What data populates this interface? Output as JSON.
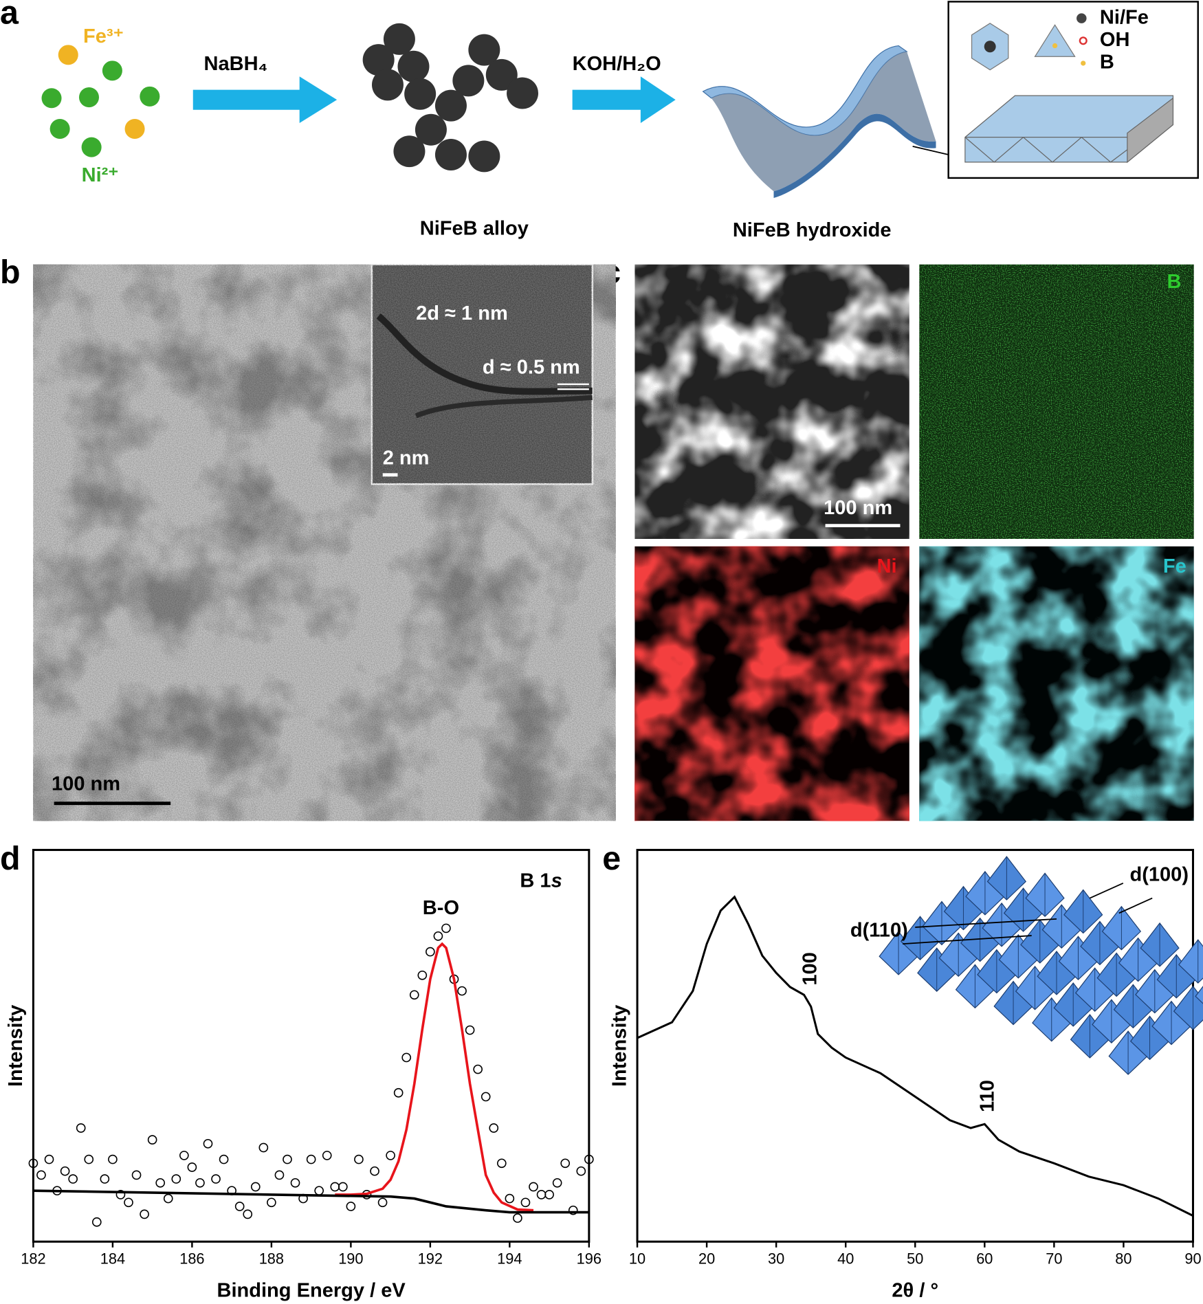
{
  "panel_labels": [
    "a",
    "b",
    "c",
    "d",
    "e"
  ],
  "panel_a": {
    "ion_fe": "Fe³⁺",
    "ion_ni": "Ni²⁺",
    "reagent_1": "NaBH₄",
    "reagent_2": "KOH/H₂O",
    "product_1": "NiFeB alloy",
    "product_2": "NiFeB hydroxide",
    "legend": [
      "Ni/Fe",
      "OH",
      "B"
    ]
  },
  "panel_b": {
    "inset_label_1": "2d ≈ 1 nm",
    "inset_label_2": "d ≈ 0.5 nm",
    "inset_scale": "2 nm",
    "scale": "100 nm"
  },
  "panel_c": {
    "scale": "100 nm",
    "maps": [
      "B",
      "Ni",
      "Fe"
    ]
  },
  "chart_data": [
    {
      "type": "scatter",
      "title": "B 1",
      "title_italic": "s",
      "annotation": "B-O",
      "x_label": "Binding Energy / eV",
      "y_label": "Intensity",
      "xlim": [
        182,
        196
      ],
      "xticks": [
        182,
        184,
        186,
        188,
        190,
        192,
        194,
        196
      ],
      "ylim": [
        0,
        100
      ],
      "series": [
        {
          "type": "scatter",
          "color": "#000000",
          "x": [
            182,
            182.2,
            182.4,
            182.6,
            182.8,
            183,
            183.2,
            183.4,
            183.6,
            183.8,
            184,
            184.2,
            184.4,
            184.6,
            184.8,
            185,
            185.2,
            185.4,
            185.6,
            185.8,
            186,
            186.2,
            186.4,
            186.6,
            186.8,
            187,
            187.2,
            187.4,
            187.6,
            187.8,
            188,
            188.2,
            188.4,
            188.6,
            188.8,
            189,
            189.2,
            189.4,
            189.6,
            189.8,
            190,
            190.2,
            190.4,
            190.6,
            190.8,
            191,
            191.2,
            191.4,
            191.6,
            191.8,
            192,
            192.2,
            192.4,
            192.6,
            192.8,
            193,
            193.2,
            193.4,
            193.6,
            193.8,
            194,
            194.2,
            194.4,
            194.6,
            194.8,
            195,
            195.2,
            195.4,
            195.6,
            195.8,
            196
          ],
          "values": [
            20,
            17,
            21,
            13,
            18,
            16,
            29,
            21,
            5,
            16,
            21,
            12,
            10,
            17,
            7,
            26,
            15,
            11,
            16,
            22,
            19,
            15,
            25,
            16,
            21,
            13,
            9,
            7,
            14,
            24,
            10,
            17,
            21,
            15,
            11,
            21,
            13,
            22,
            14,
            14,
            9,
            21,
            12,
            18,
            10,
            22,
            38,
            47,
            63,
            68,
            74,
            78,
            80,
            67,
            64,
            54,
            44,
            37,
            29,
            20,
            11,
            6,
            10,
            14,
            12,
            12,
            15,
            20,
            8,
            18,
            21
          ]
        },
        {
          "type": "line",
          "color": "#e8141b",
          "x": [
            189.6,
            190,
            190.4,
            190.8,
            191,
            191.2,
            191.4,
            191.6,
            191.8,
            192,
            192.2,
            192.3,
            192.4,
            192.6,
            192.8,
            193,
            193.2,
            193.4,
            193.6,
            193.8,
            194.2,
            194.6
          ],
          "values": [
            12,
            12,
            12.2,
            13.5,
            15.8,
            20.5,
            28.6,
            40.3,
            54.2,
            67,
            75,
            76,
            75,
            67,
            54.2,
            40.3,
            28.6,
            17,
            12.5,
            10,
            8.2,
            8
          ]
        },
        {
          "type": "line",
          "color": "#000000",
          "x": [
            182,
            188,
            191,
            191.6,
            192.4,
            193.4,
            194,
            196
          ],
          "values": [
            13,
            12,
            11.5,
            11,
            9,
            8,
            7.5,
            7.5
          ]
        }
      ]
    },
    {
      "type": "line",
      "annotations": [
        "100",
        "110"
      ],
      "inset_labels": [
        "d(100)",
        "d(110)"
      ],
      "x_label": "2θ / °",
      "y_label": "Intensity",
      "xlim": [
        10,
        90
      ],
      "xticks": [
        10,
        20,
        30,
        40,
        50,
        60,
        70,
        80,
        90
      ],
      "ylim": [
        0,
        100
      ],
      "series": [
        {
          "type": "line",
          "color": "#000000",
          "x": [
            10,
            15,
            18,
            20,
            22,
            24,
            26,
            28,
            30,
            32,
            34,
            35,
            36,
            38,
            40,
            45,
            50,
            55,
            58,
            60,
            62,
            65,
            70,
            75,
            80,
            85,
            90
          ],
          "values": [
            52,
            56,
            64,
            76,
            84.5,
            88,
            81,
            73,
            68.6,
            65,
            63,
            60,
            53,
            49.5,
            47,
            43,
            37,
            31,
            29,
            30,
            26,
            23,
            20,
            16.6,
            14.4,
            11,
            6.6
          ]
        }
      ]
    }
  ]
}
